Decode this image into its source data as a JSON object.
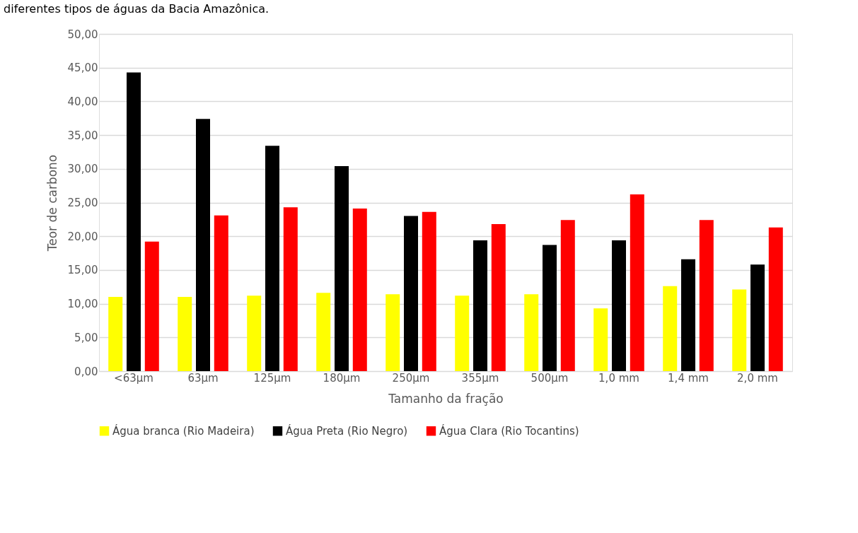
{
  "chart_data": {
    "type": "bar",
    "title": "diferentes tipos de águas da Bacia Amazônica.",
    "xlabel": "Tamanho da fração",
    "ylabel": "Teor de carbono",
    "categories": [
      "<63µm",
      "63µm",
      "125µm",
      "180µm",
      "250µm",
      "355µm",
      "500µm",
      "1,0 mm",
      "1,4 mm",
      "2,0 mm"
    ],
    "series": [
      {
        "name": "Água branca (Rio Madeira)",
        "color": "#ffff00",
        "values": [
          11.0,
          11.0,
          11.2,
          11.6,
          11.4,
          11.2,
          11.4,
          9.3,
          12.6,
          12.1
        ]
      },
      {
        "name": "Água Preta (Rio Negro)",
        "color": "#000000",
        "values": [
          44.3,
          37.4,
          33.4,
          30.4,
          23.0,
          19.4,
          18.7,
          19.4,
          16.6,
          15.8
        ]
      },
      {
        "name": "Água Clara (Rio Tocantins)",
        "color": "#ff0000",
        "values": [
          19.2,
          23.1,
          24.3,
          24.1,
          23.6,
          21.8,
          22.4,
          26.2,
          22.4,
          21.3
        ]
      }
    ],
    "ylim": [
      0,
      50
    ],
    "yticks": [
      {
        "value": 0,
        "label": "0,00"
      },
      {
        "value": 5,
        "label": "5,00"
      },
      {
        "value": 10,
        "label": "10,00"
      },
      {
        "value": 15,
        "label": "15,00"
      },
      {
        "value": 20,
        "label": "20,00"
      },
      {
        "value": 25,
        "label": "25,00"
      },
      {
        "value": 30,
        "label": "30,00"
      },
      {
        "value": 35,
        "label": "35,00"
      },
      {
        "value": 40,
        "label": "40,00"
      },
      {
        "value": 45,
        "label": "45,00"
      },
      {
        "value": 50,
        "label": "50,00"
      }
    ],
    "grid": "y",
    "legend": "bottom"
  }
}
